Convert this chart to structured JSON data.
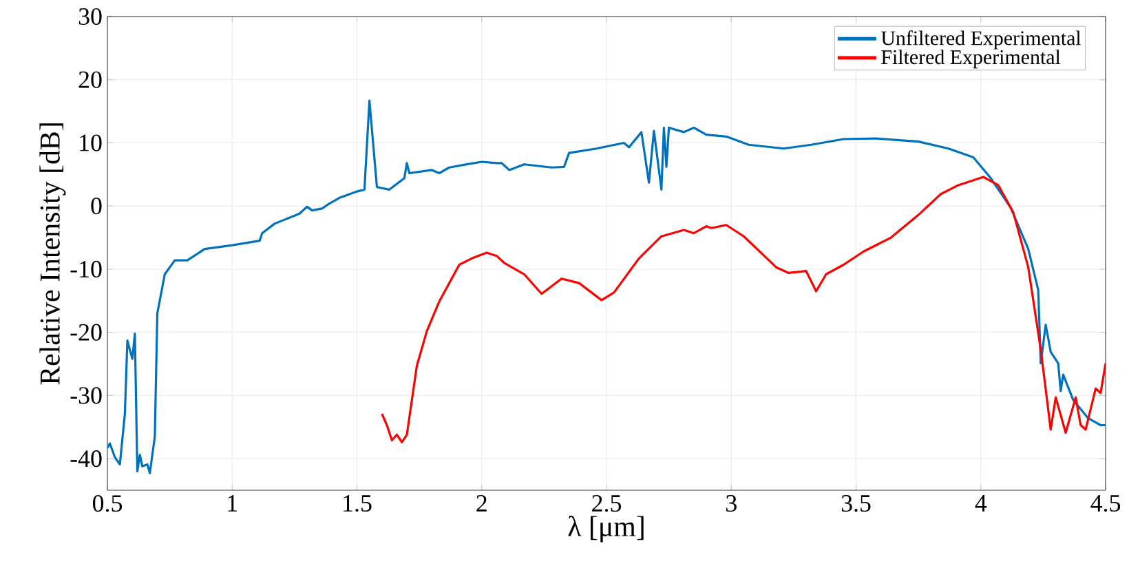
{
  "chart_data": {
    "type": "line",
    "xlabel": "λ [μm]",
    "ylabel": "Relative Intensity [dB]",
    "xlim": [
      0.5,
      4.5
    ],
    "ylim": [
      -45,
      30
    ],
    "xticks": [
      0.5,
      1,
      1.5,
      2,
      2.5,
      3,
      3.5,
      4,
      4.5
    ],
    "yticks": [
      -40,
      -30,
      -20,
      -10,
      0,
      10,
      20,
      30
    ],
    "grid": true,
    "legend": "top right",
    "line_style": "solid",
    "marker": "none",
    "series": [
      {
        "name": "Unfiltered Experimental",
        "color": "#0072bd",
        "x": [
          0.5,
          0.51,
          0.53,
          0.55,
          0.57,
          0.58,
          0.6,
          0.61,
          0.62,
          0.63,
          0.64,
          0.66,
          0.67,
          0.69,
          0.7,
          0.73,
          0.77,
          0.82,
          0.89,
          1.0,
          1.11,
          1.12,
          1.17,
          1.27,
          1.3,
          1.32,
          1.36,
          1.39,
          1.43,
          1.5,
          1.53,
          1.55,
          1.58,
          1.63,
          1.69,
          1.7,
          1.71,
          1.8,
          1.83,
          1.87,
          1.94,
          2.0,
          2.06,
          2.08,
          2.11,
          2.17,
          2.28,
          2.33,
          2.35,
          2.46,
          2.57,
          2.59,
          2.64,
          2.67,
          2.69,
          2.72,
          2.73,
          2.74,
          2.75,
          2.81,
          2.85,
          2.9,
          2.98,
          3.07,
          3.21,
          3.32,
          3.45,
          3.58,
          3.75,
          3.87,
          3.97,
          4.04,
          4.12,
          4.19,
          4.23,
          4.24,
          4.26,
          4.28,
          4.31,
          4.32,
          4.33,
          4.37,
          4.43,
          4.48,
          4.5
        ],
        "values": [
          -38.3,
          -37.6,
          -39.8,
          -40.9,
          -32.9,
          -21.3,
          -24.2,
          -20.2,
          -42.0,
          -39.4,
          -41.2,
          -40.9,
          -42.3,
          -36.5,
          -17.0,
          -10.8,
          -8.6,
          -8.6,
          -6.8,
          -6.2,
          -5.5,
          -4.3,
          -2.8,
          -1.2,
          -0.1,
          -0.7,
          -0.4,
          0.4,
          1.3,
          2.3,
          2.6,
          16.7,
          3.0,
          2.6,
          4.4,
          6.8,
          5.2,
          5.7,
          5.2,
          6.1,
          6.6,
          7.0,
          6.8,
          6.8,
          5.7,
          6.6,
          6.1,
          6.2,
          8.4,
          9.1,
          10.0,
          9.3,
          11.7,
          3.7,
          11.9,
          2.6,
          12.4,
          6.2,
          12.4,
          11.7,
          12.4,
          11.3,
          11.0,
          9.7,
          9.1,
          9.7,
          10.6,
          10.7,
          10.2,
          9.1,
          7.7,
          4.4,
          -0.3,
          -6.8,
          -13.3,
          -24.9,
          -18.8,
          -23.1,
          -24.9,
          -29.3,
          -26.7,
          -30.7,
          -33.6,
          -34.7,
          -34.7
        ]
      },
      {
        "name": "Filtered Experimental",
        "color": "#ff0000",
        "x": [
          1.6,
          1.62,
          1.64,
          1.66,
          1.68,
          1.7,
          1.74,
          1.78,
          1.83,
          1.91,
          1.96,
          2.02,
          2.06,
          2.09,
          2.17,
          2.24,
          2.32,
          2.39,
          2.48,
          2.53,
          2.63,
          2.72,
          2.81,
          2.85,
          2.9,
          2.92,
          2.98,
          3.05,
          3.18,
          3.23,
          3.3,
          3.34,
          3.38,
          3.45,
          3.53,
          3.64,
          3.75,
          3.84,
          3.91,
          4.01,
          4.07,
          4.13,
          4.19,
          4.24,
          4.28,
          4.3,
          4.34,
          4.38,
          4.4,
          4.42,
          4.46,
          4.48,
          4.5
        ],
        "values": [
          -32.9,
          -34.7,
          -37.1,
          -36.2,
          -37.4,
          -36.2,
          -25.3,
          -19.8,
          -15.1,
          -9.3,
          -8.3,
          -7.4,
          -7.9,
          -9.0,
          -10.8,
          -13.9,
          -11.5,
          -12.2,
          -14.9,
          -13.7,
          -8.3,
          -4.8,
          -3.8,
          -4.3,
          -3.2,
          -3.5,
          -3.0,
          -4.8,
          -9.7,
          -10.6,
          -10.3,
          -13.5,
          -10.8,
          -9.3,
          -7.2,
          -5.0,
          -1.4,
          1.9,
          3.3,
          4.6,
          3.3,
          -1.0,
          -9.7,
          -22.7,
          -35.4,
          -30.3,
          -35.9,
          -30.3,
          -34.7,
          -35.4,
          -28.9,
          -29.6,
          -24.9
        ]
      }
    ]
  }
}
